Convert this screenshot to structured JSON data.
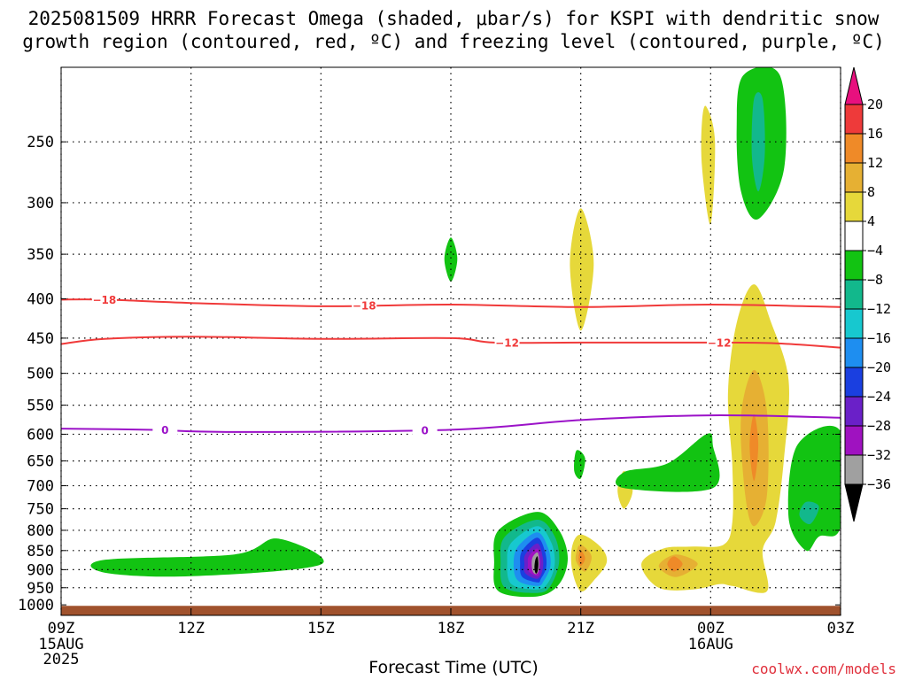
{
  "title": {
    "line1": "2025081509 HRRR Forecast Omega (shaded, μbar/s) for KSPI with dendritic snow",
    "line2": "growth region (contoured, red, ºC) and freezing level (contoured, purple, ºC)"
  },
  "credit": "coolwx.com/models",
  "chart_data": {
    "type": "heatmap",
    "xlabel": "Forecast Time (UTC)",
    "x_ticks": [
      {
        "hour": 0,
        "label": "09Z",
        "sub": [
          "15AUG",
          "2025"
        ]
      },
      {
        "hour": 3,
        "label": "12Z",
        "sub": []
      },
      {
        "hour": 6,
        "label": "15Z",
        "sub": []
      },
      {
        "hour": 9,
        "label": "18Z",
        "sub": []
      },
      {
        "hour": 12,
        "label": "21Z",
        "sub": []
      },
      {
        "hour": 15,
        "label": "00Z",
        "sub": [
          "16AUG"
        ]
      },
      {
        "hour": 18,
        "label": "03Z",
        "sub": []
      }
    ],
    "xlim": [
      0,
      18
    ],
    "ylim": [
      1032,
      200
    ],
    "y_ticks": [
      250,
      300,
      350,
      400,
      450,
      500,
      550,
      600,
      650,
      700,
      750,
      800,
      850,
      900,
      950,
      1000
    ],
    "y_scale": "log",
    "grid": true,
    "colorbar": {
      "labels": [
        "20",
        "16",
        "12",
        "8",
        "4",
        "−4",
        "−8",
        "−12",
        "−16",
        "−20",
        "−24",
        "−28",
        "−32",
        "−36"
      ],
      "colors": [
        "#e8107e",
        "#ee3a3a",
        "#ef8a28",
        "#e6b033",
        "#e6d83a",
        "#ffffff",
        "#12c312",
        "#12b88c",
        "#17c8cf",
        "#1e8ef0",
        "#1a3fe0",
        "#6a20c8",
        "#9f12c0",
        "#a0a0a0",
        "#000000"
      ]
    },
    "contours": [
      {
        "name": "-18",
        "color": "#f03a3a",
        "label": "−18",
        "points": [
          [
            0,
            401
          ],
          [
            1,
            401
          ],
          [
            3,
            405
          ],
          [
            6,
            409
          ],
          [
            9,
            407
          ],
          [
            12,
            410
          ],
          [
            15,
            407
          ],
          [
            18,
            410
          ]
        ],
        "label_at": [
          [
            1,
            401
          ],
          [
            7,
            408
          ]
        ]
      },
      {
        "name": "-12",
        "color": "#f03a3a",
        "label": "−12",
        "points": [
          [
            0,
            458
          ],
          [
            1,
            451
          ],
          [
            3,
            448
          ],
          [
            6,
            451
          ],
          [
            9,
            450
          ],
          [
            10,
            456
          ],
          [
            12,
            456
          ],
          [
            15,
            456
          ],
          [
            16.5,
            457
          ],
          [
            18,
            463
          ]
        ],
        "label_at": [
          [
            10.3,
            456
          ],
          [
            15.2,
            456
          ]
        ]
      },
      {
        "name": "0",
        "color": "#9b12c8",
        "label": "0",
        "points": [
          [
            0,
            590
          ],
          [
            2,
            592
          ],
          [
            4,
            596
          ],
          [
            9,
            592
          ],
          [
            12,
            575
          ],
          [
            15,
            567
          ],
          [
            18,
            571
          ]
        ],
        "label_at": [
          [
            2.4,
            592
          ],
          [
            8.4,
            593
          ]
        ]
      }
    ],
    "shaded": [
      {
        "value": "-4",
        "points": [
          [
            1,
            874
          ],
          [
            4,
            860
          ],
          [
            5,
            820
          ],
          [
            6,
            886
          ],
          [
            3,
            918
          ],
          [
            1,
            908
          ]
        ]
      },
      {
        "value": "-4",
        "points": [
          [
            9,
            333
          ],
          [
            9.15,
            355
          ],
          [
            9,
            380
          ],
          [
            8.85,
            355
          ]
        ]
      },
      {
        "value": "4",
        "points": [
          [
            12,
            305
          ],
          [
            12.3,
            360
          ],
          [
            12,
            440
          ],
          [
            11.75,
            360
          ]
        ]
      },
      {
        "value": "4",
        "points": [
          [
            14.9,
            225
          ],
          [
            15.1,
            250
          ],
          [
            15,
            320
          ],
          [
            14.8,
            270
          ],
          [
            14.8,
            235
          ]
        ]
      },
      {
        "value": "-4",
        "points": [
          [
            15.75,
            205
          ],
          [
            16.6,
            205
          ],
          [
            16.7,
            270
          ],
          [
            16.1,
            315
          ],
          [
            15.7,
            290
          ],
          [
            15.6,
            240
          ]
        ]
      },
      {
        "value": "-8",
        "points": [
          [
            16.0,
            220
          ],
          [
            16.2,
            220
          ],
          [
            16.25,
            260
          ],
          [
            16.1,
            290
          ],
          [
            15.95,
            260
          ]
        ]
      },
      {
        "value": "4",
        "points": [
          [
            16.0,
            383
          ],
          [
            16.4,
            430
          ],
          [
            16.8,
            510
          ],
          [
            16.7,
            640
          ],
          [
            16.5,
            780
          ],
          [
            16.2,
            850
          ],
          [
            16.3,
            960
          ],
          [
            15.5,
            945
          ],
          [
            15.2,
            940
          ],
          [
            14.6,
            955
          ],
          [
            13.8,
            950
          ],
          [
            13.4,
            885
          ],
          [
            13.9,
            845
          ],
          [
            14.6,
            840
          ],
          [
            15.3,
            835
          ],
          [
            15.5,
            780
          ],
          [
            15.5,
            660
          ],
          [
            15.4,
            530
          ],
          [
            15.6,
            430
          ]
        ]
      },
      {
        "value": "8",
        "points": [
          [
            16.0,
            495
          ],
          [
            16.3,
            560
          ],
          [
            16.3,
            720
          ],
          [
            16.0,
            790
          ],
          [
            15.8,
            720
          ],
          [
            15.7,
            570
          ]
        ]
      },
      {
        "value": "12",
        "points": [
          [
            16.0,
            565
          ],
          [
            16.1,
            620
          ],
          [
            16.0,
            690
          ],
          [
            15.9,
            620
          ]
        ]
      },
      {
        "value": "8",
        "points": [
          [
            14.2,
            860
          ],
          [
            14.7,
            885
          ],
          [
            14.2,
            920
          ],
          [
            13.8,
            890
          ]
        ]
      },
      {
        "value": "12",
        "points": [
          [
            14.15,
            865
          ],
          [
            14.35,
            885
          ],
          [
            14.15,
            905
          ],
          [
            14.0,
            885
          ]
        ]
      },
      {
        "value": "4",
        "points": [
          [
            12,
            810
          ],
          [
            12.45,
            840
          ],
          [
            12.6,
            880
          ],
          [
            12.3,
            930
          ],
          [
            12,
            960
          ],
          [
            11.8,
            900
          ],
          [
            11.8,
            840
          ]
        ]
      },
      {
        "value": "8",
        "points": [
          [
            12,
            835
          ],
          [
            12.25,
            865
          ],
          [
            12.1,
            905
          ],
          [
            11.9,
            880
          ],
          [
            11.9,
            855
          ]
        ]
      },
      {
        "value": "12",
        "points": [
          [
            12.0,
            850
          ],
          [
            12.1,
            870
          ],
          [
            12.0,
            890
          ],
          [
            11.95,
            870
          ]
        ]
      },
      {
        "value": "4",
        "points": [
          [
            13.0,
            670
          ],
          [
            13.2,
            710
          ],
          [
            13.0,
            750
          ],
          [
            12.85,
            710
          ]
        ]
      },
      {
        "value": "-4",
        "points": [
          [
            11.9,
            630
          ],
          [
            12.1,
            645
          ],
          [
            12.0,
            685
          ],
          [
            11.85,
            670
          ]
        ]
      },
      {
        "value": "-4",
        "points": [
          [
            13.0,
            672
          ],
          [
            14.0,
            655
          ],
          [
            14.9,
            600
          ],
          [
            15.05,
            620
          ],
          [
            15.05,
            705
          ],
          [
            13.0,
            705
          ]
        ]
      },
      {
        "value": "-4",
        "points": [
          [
            17.0,
            620
          ],
          [
            18,
            595
          ],
          [
            18,
            790
          ],
          [
            17.5,
            815
          ],
          [
            17.2,
            850
          ],
          [
            16.8,
            770
          ]
        ]
      },
      {
        "value": "-8",
        "points": [
          [
            17.2,
            735
          ],
          [
            17.5,
            745
          ],
          [
            17.3,
            785
          ],
          [
            17.05,
            765
          ]
        ]
      },
      {
        "value": "-4",
        "points": [
          [
            10.1,
            800
          ],
          [
            11.0,
            757
          ],
          [
            11.5,
            800
          ],
          [
            11.7,
            870
          ],
          [
            11.5,
            940
          ],
          [
            11,
            975
          ],
          [
            10.1,
            960
          ],
          [
            10.0,
            880
          ]
        ]
      },
      {
        "value": "-8",
        "points": [
          [
            10.25,
            815
          ],
          [
            11.0,
            775
          ],
          [
            11.4,
            815
          ],
          [
            11.5,
            880
          ],
          [
            11.3,
            945
          ],
          [
            11,
            965
          ],
          [
            10.25,
            950
          ],
          [
            10.15,
            880
          ]
        ]
      },
      {
        "value": "-12",
        "points": [
          [
            10.4,
            830
          ],
          [
            11.0,
            790
          ],
          [
            11.32,
            830
          ],
          [
            11.4,
            885
          ],
          [
            11.25,
            935
          ],
          [
            11,
            955
          ],
          [
            10.4,
            940
          ],
          [
            10.3,
            880
          ]
        ]
      },
      {
        "value": "-16",
        "points": [
          [
            10.55,
            840
          ],
          [
            11.0,
            805
          ],
          [
            11.25,
            845
          ],
          [
            11.3,
            890
          ],
          [
            11.15,
            930
          ],
          [
            11,
            945
          ],
          [
            10.55,
            930
          ],
          [
            10.45,
            885
          ]
        ]
      },
      {
        "value": "-20",
        "points": [
          [
            10.65,
            850
          ],
          [
            11.0,
            818
          ],
          [
            11.18,
            855
          ],
          [
            11.2,
            895
          ],
          [
            11.08,
            925
          ],
          [
            11,
            935
          ],
          [
            10.65,
            920
          ],
          [
            10.6,
            885
          ]
        ]
      },
      {
        "value": "-24",
        "points": [
          [
            10.72,
            860
          ],
          [
            11.0,
            832
          ],
          [
            11.12,
            865
          ],
          [
            11.12,
            900
          ],
          [
            11.0,
            925
          ],
          [
            10.72,
            910
          ],
          [
            10.7,
            885
          ]
        ]
      },
      {
        "value": "-28",
        "points": [
          [
            10.8,
            865
          ],
          [
            11.0,
            845
          ],
          [
            11.07,
            875
          ],
          [
            11.05,
            905
          ],
          [
            11.0,
            918
          ],
          [
            10.8,
            905
          ],
          [
            10.78,
            885
          ]
        ]
      },
      {
        "value": "-32",
        "points": [
          [
            10.88,
            870
          ],
          [
            11.0,
            855
          ],
          [
            11.04,
            880
          ],
          [
            11.02,
            905
          ],
          [
            10.95,
            912
          ],
          [
            10.88,
            900
          ]
        ]
      },
      {
        "value": "-36",
        "points": [
          [
            10.95,
            875
          ],
          [
            11.0,
            865
          ],
          [
            11.02,
            885
          ],
          [
            11.0,
            905
          ],
          [
            10.96,
            910
          ],
          [
            10.93,
            895
          ]
        ]
      }
    ],
    "ground": {
      "from_pressure": 1003,
      "color": "#a0522d"
    }
  }
}
